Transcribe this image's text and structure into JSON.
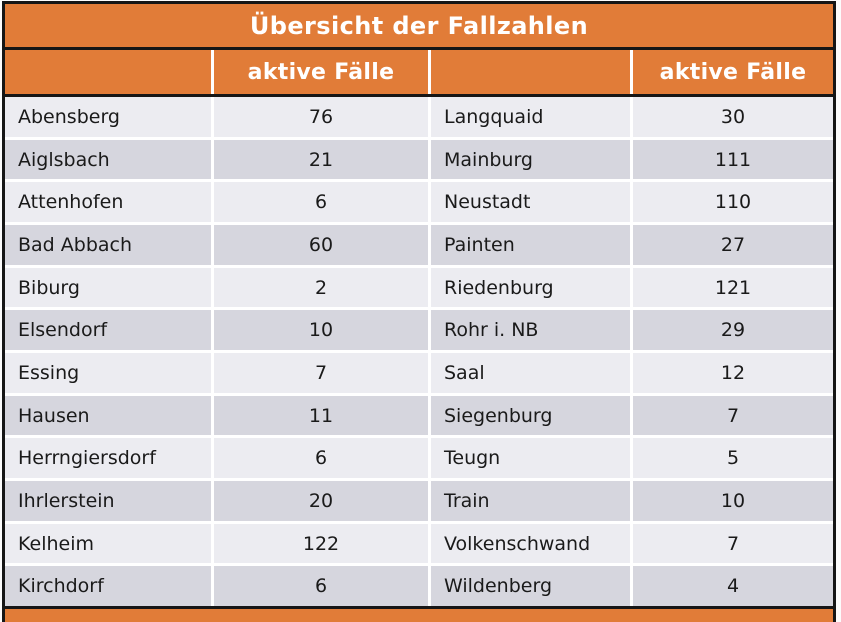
{
  "table": {
    "title": "Übersicht der Fallzahlen",
    "header": {
      "active_cases_left": "aktive Fälle",
      "active_cases_right": "aktive Fälle"
    },
    "rows": [
      {
        "left_name": "Abensberg",
        "left_value": "76",
        "right_name": "Langquaid",
        "right_value": "30"
      },
      {
        "left_name": "Aiglsbach",
        "left_value": "21",
        "right_name": "Mainburg",
        "right_value": "111"
      },
      {
        "left_name": "Attenhofen",
        "left_value": "6",
        "right_name": "Neustadt",
        "right_value": "110"
      },
      {
        "left_name": "Bad Abbach",
        "left_value": "60",
        "right_name": "Painten",
        "right_value": "27"
      },
      {
        "left_name": "Biburg",
        "left_value": "2",
        "right_name": "Riedenburg",
        "right_value": "121"
      },
      {
        "left_name": "Elsendorf",
        "left_value": "10",
        "right_name": "Rohr i. NB",
        "right_value": "29"
      },
      {
        "left_name": "Essing",
        "left_value": "7",
        "right_name": "Saal",
        "right_value": "12"
      },
      {
        "left_name": "Hausen",
        "left_value": "11",
        "right_name": "Siegenburg",
        "right_value": "7"
      },
      {
        "left_name": "Herrngiersdorf",
        "left_value": "6",
        "right_name": "Teugn",
        "right_value": "5"
      },
      {
        "left_name": "Ihrlerstein",
        "left_value": "20",
        "right_name": "Train",
        "right_value": "10"
      },
      {
        "left_name": "Kelheim",
        "left_value": "122",
        "right_name": "Volkenschwand",
        "right_value": "7"
      },
      {
        "left_name": "Kirchdorf",
        "left_value": "6",
        "right_name": "Wildenberg",
        "right_value": "4"
      }
    ]
  },
  "chart_data": {
    "type": "table",
    "title": "Übersicht der Fallzahlen",
    "columns": [
      "",
      "aktive Fälle",
      "",
      "aktive Fälle"
    ],
    "entries": [
      {
        "name": "Abensberg",
        "aktive_faelle": 76
      },
      {
        "name": "Aiglsbach",
        "aktive_faelle": 21
      },
      {
        "name": "Attenhofen",
        "aktive_faelle": 6
      },
      {
        "name": "Bad Abbach",
        "aktive_faelle": 60
      },
      {
        "name": "Biburg",
        "aktive_faelle": 2
      },
      {
        "name": "Elsendorf",
        "aktive_faelle": 10
      },
      {
        "name": "Essing",
        "aktive_faelle": 7
      },
      {
        "name": "Hausen",
        "aktive_faelle": 11
      },
      {
        "name": "Herrngiersdorf",
        "aktive_faelle": 6
      },
      {
        "name": "Ihrlerstein",
        "aktive_faelle": 20
      },
      {
        "name": "Kelheim",
        "aktive_faelle": 122
      },
      {
        "name": "Kirchdorf",
        "aktive_faelle": 6
      },
      {
        "name": "Langquaid",
        "aktive_faelle": 30
      },
      {
        "name": "Mainburg",
        "aktive_faelle": 111
      },
      {
        "name": "Neustadt",
        "aktive_faelle": 110
      },
      {
        "name": "Painten",
        "aktive_faelle": 27
      },
      {
        "name": "Riedenburg",
        "aktive_faelle": 121
      },
      {
        "name": "Rohr i. NB",
        "aktive_faelle": 29
      },
      {
        "name": "Saal",
        "aktive_faelle": 12
      },
      {
        "name": "Siegenburg",
        "aktive_faelle": 7
      },
      {
        "name": "Teugn",
        "aktive_faelle": 5
      },
      {
        "name": "Train",
        "aktive_faelle": 10
      },
      {
        "name": "Volkenschwand",
        "aktive_faelle": 7
      },
      {
        "name": "Wildenberg",
        "aktive_faelle": 4
      }
    ],
    "layout": "two side-by-side name/value column pairs, banded rows"
  },
  "colors": {
    "accent_orange": "#e17c38",
    "row_light": "#ececf1",
    "row_dark": "#d6d6de",
    "border_black": "#161616",
    "header_text": "#ffffff",
    "body_text": "#1a1a1a"
  }
}
